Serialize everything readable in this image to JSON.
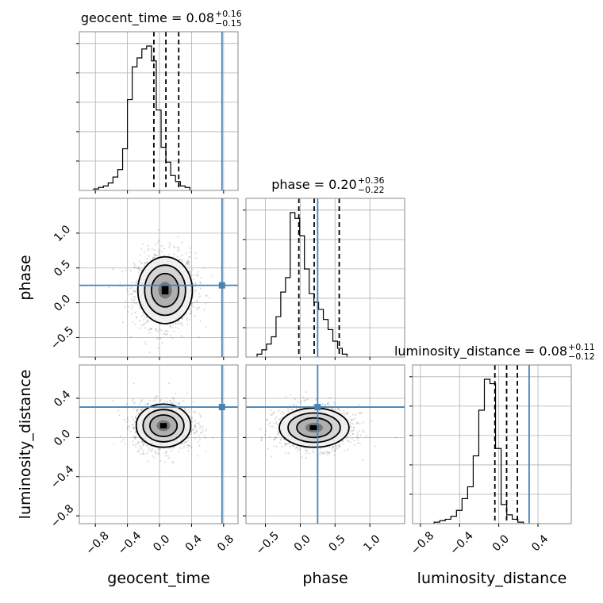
{
  "chart_data": {
    "type": "corner",
    "parameters": [
      "geocent_time",
      "phase",
      "luminosity_distance"
    ],
    "truth": {
      "color": "#4682b4",
      "values": {
        "geocent_time": 0.78,
        "phase": 0.25,
        "luminosity_distance": 0.31
      }
    },
    "titles": [
      {
        "param": "geocent_time",
        "name": "geocent_time = 0.08",
        "plus": "+0.16",
        "minus": "−0.15"
      },
      {
        "param": "phase",
        "name": "phase = 0.20",
        "plus": "+0.36",
        "minus": "−0.22"
      },
      {
        "param": "luminosity_distance",
        "name": "luminosity_distance = 0.08",
        "plus": "+0.11",
        "minus": "−0.12"
      }
    ],
    "xlabels": [
      "geocent_time",
      "phase",
      "luminosity_distance"
    ],
    "ylabels": [
      "phase",
      "luminosity_distance"
    ],
    "ranges": {
      "geocent_time": [
        -1.0,
        0.98
      ],
      "phase": [
        -0.78,
        1.5
      ],
      "luminosity_distance": [
        -0.88,
        0.74
      ]
    },
    "ticks": {
      "geocent_time": [
        -0.8,
        -0.4,
        0.0,
        0.4,
        0.8
      ],
      "phase": [
        -0.5,
        0.0,
        0.5,
        1.0
      ],
      "luminosity_distance": [
        -0.8,
        -0.4,
        0.0,
        0.4
      ]
    },
    "tick_labels": {
      "geocent_time": [
        "−0.8",
        "−0.4",
        "0.0",
        "0.4",
        "0.8"
      ],
      "phase": [
        "−0.5",
        "0.0",
        "0.5",
        "1.0"
      ],
      "luminosity_distance": [
        "−0.8",
        "−0.4",
        "0.0",
        "0.4"
      ]
    },
    "histograms": {
      "geocent_time": {
        "bin_start": -0.82,
        "bin_width": 0.06,
        "counts": [
          1,
          2,
          3,
          5,
          9,
          14,
          28,
          61,
          83,
          89,
          95,
          97,
          87,
          54,
          29,
          19,
          10,
          6,
          3,
          2
        ],
        "quantiles": [
          -0.07,
          0.08,
          0.24
        ],
        "grid": true
      },
      "phase": {
        "bin_start": -0.62,
        "bin_width": 0.068,
        "counts": [
          2,
          5,
          9,
          14,
          28,
          45,
          55,
          100,
          96,
          84,
          61,
          44,
          38,
          33,
          26,
          19,
          11,
          6,
          2
        ],
        "quantiles": [
          -0.02,
          0.2,
          0.56
        ],
        "grid": true
      },
      "luminosity_distance": {
        "bin_start": -0.66,
        "bin_width": 0.057,
        "counts": [
          1,
          2,
          3,
          5,
          9,
          17,
          25,
          46,
          77,
          98,
          95,
          51,
          13,
          6,
          3,
          1
        ],
        "quantiles": [
          -0.04,
          0.08,
          0.19
        ],
        "grid": true
      }
    },
    "density_panels": [
      {
        "x": "geocent_time",
        "y": "phase",
        "center": [
          0.07,
          0.18
        ],
        "spread": [
          0.17,
          0.24
        ]
      },
      {
        "x": "geocent_time",
        "y": "luminosity_distance",
        "center": [
          0.05,
          0.12
        ],
        "spread": [
          0.17,
          0.11
        ]
      },
      {
        "x": "phase",
        "y": "luminosity_distance",
        "center": [
          0.2,
          0.1
        ],
        "spread": [
          0.25,
          0.1
        ]
      }
    ],
    "contour_levels": [
      "0.5",
      "1.0",
      "1.5",
      "2.0"
    ]
  }
}
